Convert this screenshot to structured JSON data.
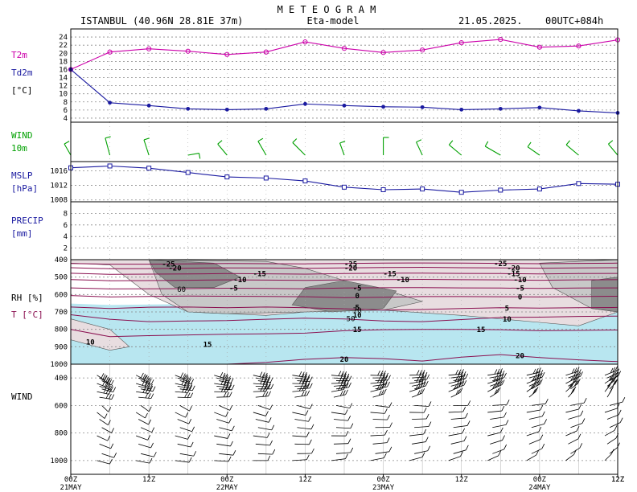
{
  "header": {
    "title": "M E T E O G R A M",
    "station": "ISTANBUL (40.96N 28.81E  37m)",
    "model": "Eta-model",
    "date": "21.05.2025.",
    "run": "00UTC+084h"
  },
  "colors": {
    "t2m": "#cc00aa",
    "td2m": "#1a1aa0",
    "wind": "#00a000",
    "mslp": "#1a1aa0",
    "precip": "#1a1aa0",
    "rh_dark": "#8c8c8c",
    "rh_mid": "#c8c8c8",
    "rh_light": "#e8dde0",
    "t_iso": "#8a1050",
    "cold_fill": "#b8e6f0"
  },
  "chart_data": [
    {
      "type": "line",
      "panel": "temperature",
      "label_lines": [
        "T2m",
        "Td2m",
        "[°C]"
      ],
      "ylim": [
        3,
        26
      ],
      "yticks": [
        "4",
        "6",
        "8",
        "10",
        "12",
        "14",
        "16",
        "18",
        "20",
        "22",
        "24"
      ],
      "x_hours": [
        0,
        6,
        12,
        18,
        24,
        30,
        36,
        42,
        48,
        54,
        60,
        66,
        72,
        78,
        84
      ],
      "series": [
        {
          "name": "T2m",
          "values": [
            16,
            20.3,
            21.1,
            20.5,
            19.7,
            20.3,
            22.8,
            21.2,
            20.2,
            20.8,
            22.6,
            23.4,
            21.5,
            21.8,
            23.3
          ]
        },
        {
          "name": "Td2m",
          "values": [
            16,
            7.8,
            7.1,
            6.3,
            6.1,
            6.3,
            7.5,
            7.1,
            6.8,
            6.7,
            6.1,
            6.3,
            6.6,
            5.8,
            5.3
          ]
        }
      ]
    },
    {
      "type": "barbs",
      "panel": "wind10m",
      "label_lines": [
        "WIND",
        "10m"
      ]
    },
    {
      "type": "line",
      "panel": "mslp",
      "label_lines": [
        "MSLP",
        "[hPa]"
      ],
      "ylim": [
        1007.5,
        1018.5
      ],
      "yticks": [
        "1008",
        "1012",
        "1016"
      ],
      "x_hours": [
        0,
        6,
        12,
        18,
        24,
        30,
        36,
        42,
        48,
        54,
        60,
        66,
        72,
        78,
        84
      ],
      "series": [
        {
          "name": "MSLP",
          "values": [
            1016.8,
            1017.3,
            1016.7,
            1015.5,
            1014.3,
            1014.0,
            1013.2,
            1011.5,
            1010.8,
            1011.0,
            1010.1,
            1010.7,
            1011.0,
            1012.5,
            1012.3
          ]
        }
      ]
    },
    {
      "type": "bar",
      "panel": "precip",
      "label_lines": [
        "PRECIP",
        "[mm]"
      ],
      "ylim": [
        0,
        10
      ],
      "yticks": [
        "2",
        "4",
        "6",
        "8"
      ],
      "values": [
        0,
        0,
        0,
        0,
        0,
        0,
        0,
        0,
        0,
        0,
        0,
        0,
        0,
        0
      ]
    },
    {
      "type": "contour",
      "panel": "rh_t",
      "label_lines": [
        "RH  [%]",
        "T  [°C]"
      ],
      "ylim": [
        400,
        1000
      ],
      "yticks": [
        "400",
        "500",
        "600",
        "700",
        "800",
        "900",
        "1000"
      ],
      "rh_labels": [
        "60",
        "70",
        "50"
      ],
      "isotherms": [
        {
          "label": "-25",
          "p": [
            422,
            426,
            426,
            424,
            422,
            423,
            424,
            422,
            420,
            419,
            420,
            421,
            423,
            421,
            420
          ]
        },
        {
          "label": "-20",
          "p": [
            446,
            452,
            451,
            449,
            447,
            448,
            450,
            447,
            445,
            444,
            446,
            447,
            449,
            447,
            446
          ]
        },
        {
          "label": "-15",
          "p": [
            478,
            484,
            483,
            482,
            480,
            481,
            483,
            480,
            478,
            477,
            479,
            480,
            482,
            480,
            479
          ]
        },
        {
          "label": "-10",
          "p": [
            514,
            521,
            520,
            518,
            516,
            517,
            519,
            516,
            514,
            513,
            515,
            516,
            518,
            516,
            515
          ]
        },
        {
          "label": "-5",
          "p": [
            562,
            568,
            567,
            566,
            564,
            565,
            567,
            563,
            561,
            560,
            562,
            563,
            565,
            563,
            562
          ]
        },
        {
          "label": "0",
          "p": [
            606,
            614,
            611,
            609,
            610,
            611,
            613,
            618,
            616,
            612,
            612,
            613,
            614,
            612,
            610
          ]
        },
        {
          "label": "5",
          "p": [
            672,
            680,
            673,
            672,
            676,
            672,
            676,
            682,
            690,
            686,
            680,
            676,
            678,
            676,
            674
          ]
        },
        {
          "label": "10",
          "p": [
            716,
            742,
            756,
            752,
            750,
            742,
            736,
            740,
            752,
            756,
            744,
            732,
            730,
            726,
            724
          ]
        },
        {
          "label": "15",
          "p": [
            800,
            842,
            836,
            832,
            828,
            826,
            822,
            808,
            802,
            800,
            800,
            802,
            808,
            806,
            804
          ]
        },
        {
          "label": "20",
          "p": [
            1000,
            1000,
            1000,
            1000,
            1000,
            990,
            972,
            962,
            968,
            982,
            960,
            945,
            962,
            975,
            985
          ]
        }
      ],
      "isotherm_label_positions": [
        {
          "label": "-25",
          "hour": 15,
          "p": 422
        },
        {
          "label": "-20",
          "hour": 16,
          "p": 446
        },
        {
          "label": "-15",
          "hour": 29,
          "p": 478
        },
        {
          "label": "-10",
          "hour": 26,
          "p": 514
        },
        {
          "label": "-5",
          "hour": 25,
          "p": 562
        },
        {
          "label": "0",
          "hour": 44,
          "p": 606
        },
        {
          "label": "5",
          "hour": 44,
          "p": 672
        },
        {
          "label": "10",
          "hour": 44,
          "p": 716
        },
        {
          "label": "15",
          "hour": 44,
          "p": 800
        },
        {
          "label": "20",
          "hour": 42,
          "p": 970
        },
        {
          "label": "10",
          "hour": 3,
          "p": 870
        },
        {
          "label": "15",
          "hour": 21,
          "p": 885
        },
        {
          "label": "-25",
          "hour": 43,
          "p": 422
        },
        {
          "label": "-20",
          "hour": 43,
          "p": 446
        },
        {
          "label": "-15",
          "hour": 49,
          "p": 478
        },
        {
          "label": "-10",
          "hour": 51,
          "p": 514
        },
        {
          "label": "-5",
          "hour": 44,
          "p": 562
        },
        {
          "label": "15",
          "hour": 63,
          "p": 800
        },
        {
          "label": "20",
          "hour": 69,
          "p": 950
        },
        {
          "label": "-25",
          "hour": 66,
          "p": 420
        },
        {
          "label": "-20",
          "hour": 68,
          "p": 446
        },
        {
          "label": "-15",
          "hour": 68,
          "p": 478
        },
        {
          "label": "-10",
          "hour": 69,
          "p": 514
        },
        {
          "label": "-5",
          "hour": 69,
          "p": 562
        },
        {
          "label": "0",
          "hour": 69,
          "p": 612
        },
        {
          "label": "5",
          "hour": 67,
          "p": 676
        },
        {
          "label": "10",
          "hour": 67,
          "p": 740
        }
      ]
    },
    {
      "type": "barbs",
      "panel": "wind_profile",
      "label_lines": [
        "WIND"
      ],
      "ylim": [
        300,
        1100
      ],
      "yticks": [
        "400",
        "600",
        "800",
        "1000"
      ]
    }
  ],
  "xaxis": {
    "ticks": [
      "00Z",
      "12Z",
      "00Z",
      "12Z",
      "00Z",
      "12Z",
      "00Z",
      "12Z"
    ],
    "dates": [
      "21MAY",
      "22MAY",
      "23MAY",
      "24MAY"
    ]
  }
}
